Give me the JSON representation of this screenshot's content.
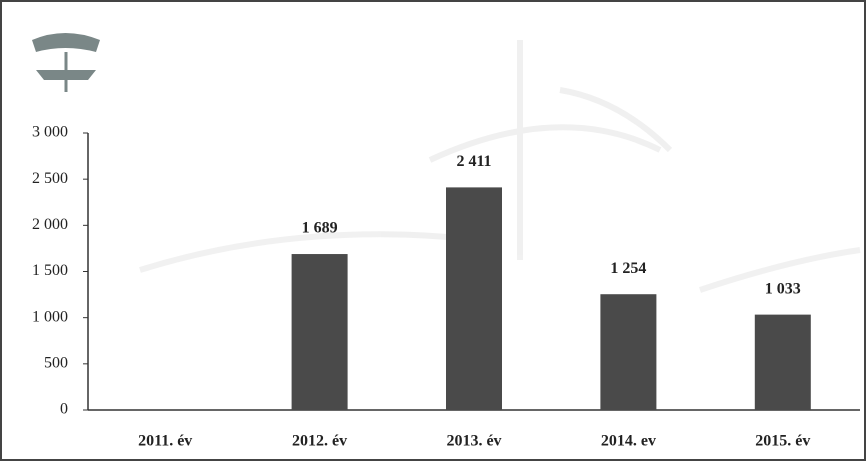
{
  "chart_data": {
    "type": "bar",
    "categories": [
      "2011. év",
      "2012. év",
      "2013. év",
      "2014. ev",
      "2015. év"
    ],
    "values": [
      0,
      1689,
      2411,
      1254,
      1033
    ],
    "value_labels": [
      null,
      "1 689",
      "2 411",
      "1 254",
      "1 033"
    ],
    "color": "#4a4a4a",
    "ylim": [
      0,
      3000
    ],
    "yticks": [
      0,
      500,
      {
        "value": 1000,
        "label": "1 000"
      },
      {
        "value": 1500,
        "label": "1 500"
      },
      {
        "value": 2000,
        "label": "2 000"
      },
      {
        "value": 2500,
        "label": "2 500"
      },
      {
        "value": 3000,
        "label": "3 000"
      }
    ],
    "grid": false
  }
}
